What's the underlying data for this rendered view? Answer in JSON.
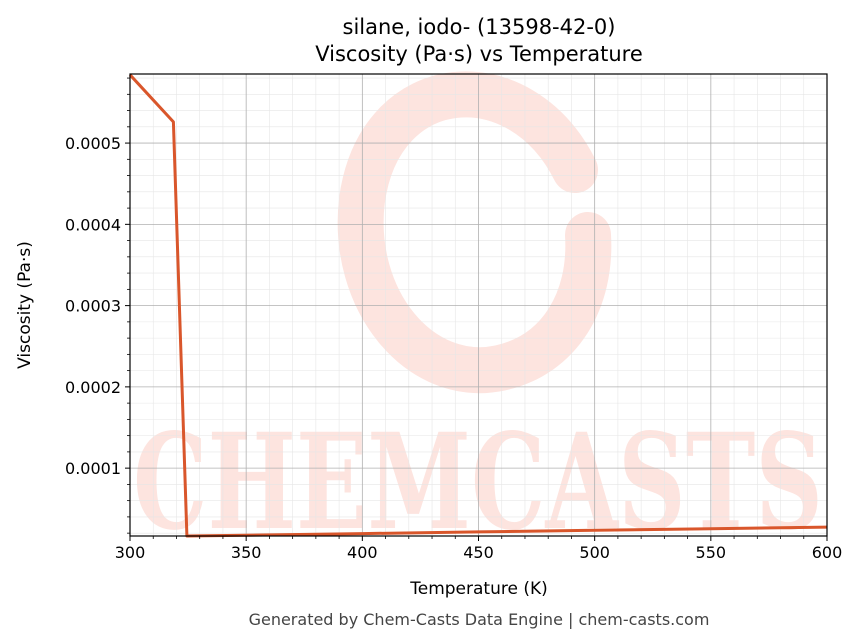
{
  "chart_data": {
    "type": "line",
    "title": "silane, iodo- (13598-42-0)",
    "subtitle": "Viscosity (Pa·s) vs Temperature",
    "xlabel": "Temperature (K)",
    "ylabel": "Viscosity (Pa·s)",
    "xlim": [
      300,
      600
    ],
    "ylim": [
      1.65e-05,
      0.000585
    ],
    "xticks": [
      300,
      350,
      400,
      450,
      500,
      550,
      600
    ],
    "xtick_labels": [
      "300",
      "350",
      "400",
      "450",
      "500",
      "550",
      "600"
    ],
    "yticks": [
      0.0001,
      0.0002,
      0.0003,
      0.0004,
      0.0005
    ],
    "ytick_labels": [
      "0.0001",
      "0.0002",
      "0.0003",
      "0.0004",
      "0.0005"
    ],
    "grid": true,
    "series": [
      {
        "color": "#d9562b",
        "x": [
          300,
          318.7,
          324.5,
          350,
          400,
          450,
          500,
          550,
          600
        ],
        "y": [
          0.000584,
          0.000526,
          1.65e-05,
          1.75e-05,
          1.95e-05,
          2.15e-05,
          2.35e-05,
          2.55e-05,
          2.75e-05
        ]
      }
    ]
  },
  "watermark": "CHEMCASTS",
  "footer": "Generated by Chem-Casts Data Engine | chem-casts.com",
  "colors": {
    "line": "#d9562b",
    "watermark": "#fde4df",
    "grid": "#b0b0b0"
  }
}
